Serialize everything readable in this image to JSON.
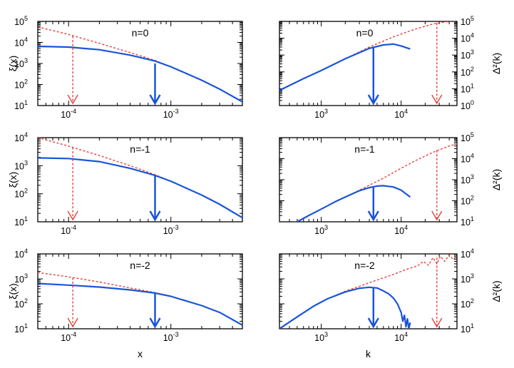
{
  "chart_data": {
    "type": "line",
    "layout": "3 rows x 2 columns",
    "shared_xlabels": {
      "left": "x",
      "right": "k"
    },
    "colors": {
      "simulation": "#1a55d8",
      "linear": "#e8403a"
    },
    "panels": [
      {
        "id": "xi-n0",
        "title": "n=0",
        "xlabel": "x",
        "ylabel": "ξ(x)",
        "ylabel_side": "left",
        "xscale": "log",
        "yscale": "log",
        "xlim": [
          5e-05,
          0.005
        ],
        "ylim": [
          10,
          100000
        ],
        "xtick_labels": [
          "10-4",
          "10-3"
        ],
        "ytick_labels": [
          "10^1",
          "10^2",
          "10^3",
          "10^4",
          "10^5"
        ],
        "series": [
          {
            "name": "simulation",
            "style": "solid",
            "x": [
              5e-05,
              0.0001,
              0.0002,
              0.0004,
              0.0007,
              0.001,
              0.002,
              0.003,
              0.005
            ],
            "y": [
              6500,
              6000,
              4500,
              2500,
              1300,
              700,
              160,
              60,
              15
            ]
          },
          {
            "name": "linear",
            "style": "dashed",
            "x": [
              5e-05,
              0.0001,
              0.0002,
              0.0004,
              0.0007,
              0.001,
              0.002,
              0.003,
              0.005
            ],
            "y": [
              55000,
              24000,
              9000,
              3300,
              1400,
              700,
              160,
              60,
              15
            ]
          }
        ],
        "arrows": [
          {
            "series": "linear",
            "x": 0.00011,
            "y_top": 20000,
            "style": "dashed"
          },
          {
            "series": "simulation",
            "x": 0.0007,
            "y_top": 1000,
            "style": "solid"
          }
        ]
      },
      {
        "id": "delta-n0",
        "title": "n=0",
        "xlabel": "k",
        "ylabel": "Δ²(k)",
        "ylabel_side": "right",
        "xscale": "log",
        "yscale": "log",
        "xlim": [
          300,
          50000
        ],
        "ylim": [
          1,
          100000
        ],
        "xtick_labels": [
          "10^3",
          "10^4"
        ],
        "ytick_labels": [
          "10^0",
          "10^1",
          "10^2",
          "10^3",
          "10^4",
          "10^5"
        ],
        "series": [
          {
            "name": "simulation",
            "style": "solid",
            "x": [
              300,
              600,
              1000,
              2000,
              4000,
              6000,
              8000,
              10000,
              13000
            ],
            "y": [
              8,
              40,
              120,
              600,
              2500,
              4000,
              4500,
              3500,
              2300
            ]
          },
          {
            "name": "linear",
            "style": "dashed",
            "x": [
              300,
              600,
              1000,
              2000,
              4000,
              8000,
              15000,
              25000,
              40000,
              50000
            ],
            "y": [
              8,
              40,
              120,
              600,
              3000,
              12000,
              35000,
              70000,
              100000,
              100000
            ]
          }
        ],
        "arrows": [
          {
            "series": "simulation",
            "x": 4500,
            "y_top": 3000,
            "style": "solid"
          },
          {
            "series": "linear",
            "x": 28000,
            "y_top": 80000,
            "style": "dashed"
          }
        ]
      },
      {
        "id": "xi-n-1",
        "title": "n=-1",
        "xlabel": "x",
        "ylabel": "ξ(x)",
        "ylabel_side": "left",
        "xscale": "log",
        "yscale": "log",
        "xlim": [
          5e-05,
          0.005
        ],
        "ylim": [
          10,
          10000
        ],
        "xtick_labels": [
          "10-4",
          "10-3"
        ],
        "ytick_labels": [
          "10^1",
          "10^2",
          "10^3",
          "10^4"
        ],
        "series": [
          {
            "name": "simulation",
            "style": "solid",
            "x": [
              5e-05,
              0.0001,
              0.0002,
              0.0004,
              0.0007,
              0.001,
              0.002,
              0.003,
              0.005
            ],
            "y": [
              1900,
              1800,
              1400,
              800,
              450,
              280,
              90,
              42,
              14
            ]
          },
          {
            "name": "linear",
            "style": "dashed",
            "x": [
              5e-05,
              0.0001,
              0.0002,
              0.0004,
              0.0007,
              0.001,
              0.002,
              0.003,
              0.005
            ],
            "y": [
              10000,
              5000,
              2300,
              1000,
              480,
              280,
              90,
              42,
              14
            ]
          }
        ],
        "arrows": [
          {
            "series": "linear",
            "x": 0.00011,
            "y_top": 4500,
            "style": "dashed"
          },
          {
            "series": "simulation",
            "x": 0.0007,
            "y_top": 450,
            "style": "solid"
          }
        ]
      },
      {
        "id": "delta-n-1",
        "title": "n=-1",
        "xlabel": "k",
        "ylabel": "Δ²(k)",
        "ylabel_side": "right",
        "xscale": "log",
        "yscale": "log",
        "xlim": [
          300,
          50000
        ],
        "ylim": [
          10,
          100000
        ],
        "xtick_labels": [
          "10^3",
          "10^4"
        ],
        "ytick_labels": [
          "10^1",
          "10^2",
          "10^3",
          "10^4",
          "10^5"
        ],
        "series": [
          {
            "name": "simulation",
            "style": "solid",
            "x": [
              500,
              700,
              1000,
              1500,
              2000,
              3000,
              4000,
              5000,
              6000,
              8000,
              10000,
              13000
            ],
            "y": [
              10,
              20,
              40,
              90,
              150,
              300,
              420,
              500,
              520,
              450,
              320,
              150
            ]
          },
          {
            "name": "linear",
            "style": "dashed",
            "x": [
              500,
              700,
              1000,
              1500,
              2000,
              3000,
              4000,
              6000,
              10000,
              15000,
              25000,
              40000,
              50000
            ],
            "y": [
              10,
              20,
              40,
              90,
              150,
              320,
              550,
              1200,
              3500,
              8000,
              20000,
              40000,
              50000
            ]
          }
        ],
        "arrows": [
          {
            "series": "simulation",
            "x": 4500,
            "y_top": 480,
            "style": "solid"
          },
          {
            "series": "linear",
            "x": 28000,
            "y_top": 25000,
            "style": "dashed"
          }
        ]
      },
      {
        "id": "xi-n-2",
        "title": "n=-2",
        "xlabel": "x",
        "ylabel": "ξ(x)",
        "ylabel_side": "left",
        "xscale": "log",
        "yscale": "log",
        "xlim": [
          5e-05,
          0.005
        ],
        "ylim": [
          10,
          10000
        ],
        "xtick_labels": [
          "10-4",
          "10-3"
        ],
        "ytick_labels": [
          "10^1",
          "10^2",
          "10^3",
          "10^4"
        ],
        "series": [
          {
            "name": "simulation",
            "style": "solid",
            "x": [
              5e-05,
              0.0001,
              0.0002,
              0.0004,
              0.0007,
              0.001,
              0.002,
              0.003,
              0.005
            ],
            "y": [
              650,
              560,
              470,
              360,
              270,
              200,
              85,
              45,
              14
            ]
          },
          {
            "name": "linear",
            "style": "dashed",
            "x": [
              5e-05,
              0.0001,
              0.0002,
              0.0004,
              0.0007,
              0.001,
              0.002,
              0.003,
              0.005
            ],
            "y": [
              1800,
              1200,
              750,
              430,
              280,
              200,
              85,
              45,
              14
            ]
          }
        ],
        "arrows": [
          {
            "series": "linear",
            "x": 0.00011,
            "y_top": 1100,
            "style": "dashed"
          },
          {
            "series": "simulation",
            "x": 0.0007,
            "y_top": 280,
            "style": "solid"
          }
        ]
      },
      {
        "id": "delta-n-2",
        "title": "n=-2",
        "xlabel": "k",
        "ylabel": "Δ²(k)",
        "ylabel_side": "right",
        "xscale": "log",
        "yscale": "log",
        "xlim": [
          300,
          50000
        ],
        "ylim": [
          10,
          10000
        ],
        "xtick_labels": [
          "10^3",
          "10^4"
        ],
        "ytick_labels": [
          "10^1",
          "10^2",
          "10^3",
          "10^4"
        ],
        "series": [
          {
            "name": "simulation",
            "style": "solid",
            "x": [
              300,
              500,
              800,
              1200,
              2000,
              3000,
              4000,
              5000,
              6000,
              7000,
              8000,
              9000,
              10000,
              10500,
              11000,
              11500,
              12000,
              12500,
              13000
            ],
            "y": [
              10,
              30,
              80,
              160,
              300,
              420,
              460,
              430,
              330,
              250,
              170,
              100,
              45,
              20,
              35,
              12,
              25,
              10,
              18
            ]
          },
          {
            "name": "linear",
            "style": "dashed",
            "x": [
              300,
              500,
              800,
              1200,
              2000,
              3000,
              4000,
              6000,
              8000,
              10000,
              13000,
              16000,
              19000,
              22000,
              25000,
              28000,
              31000,
              35000,
              40000,
              45000,
              50000
            ],
            "y": [
              10,
              30,
              80,
              160,
              320,
              500,
              700,
              1100,
              1500,
              2000,
              2700,
              3300,
              5000,
              3500,
              7000,
              4000,
              8000,
              5000,
              9000,
              6000,
              8000
            ]
          }
        ],
        "arrows": [
          {
            "series": "simulation",
            "x": 4500,
            "y_top": 450,
            "style": "solid"
          },
          {
            "series": "linear",
            "x": 28000,
            "y_top": 7000,
            "style": "dashed"
          }
        ]
      }
    ]
  }
}
